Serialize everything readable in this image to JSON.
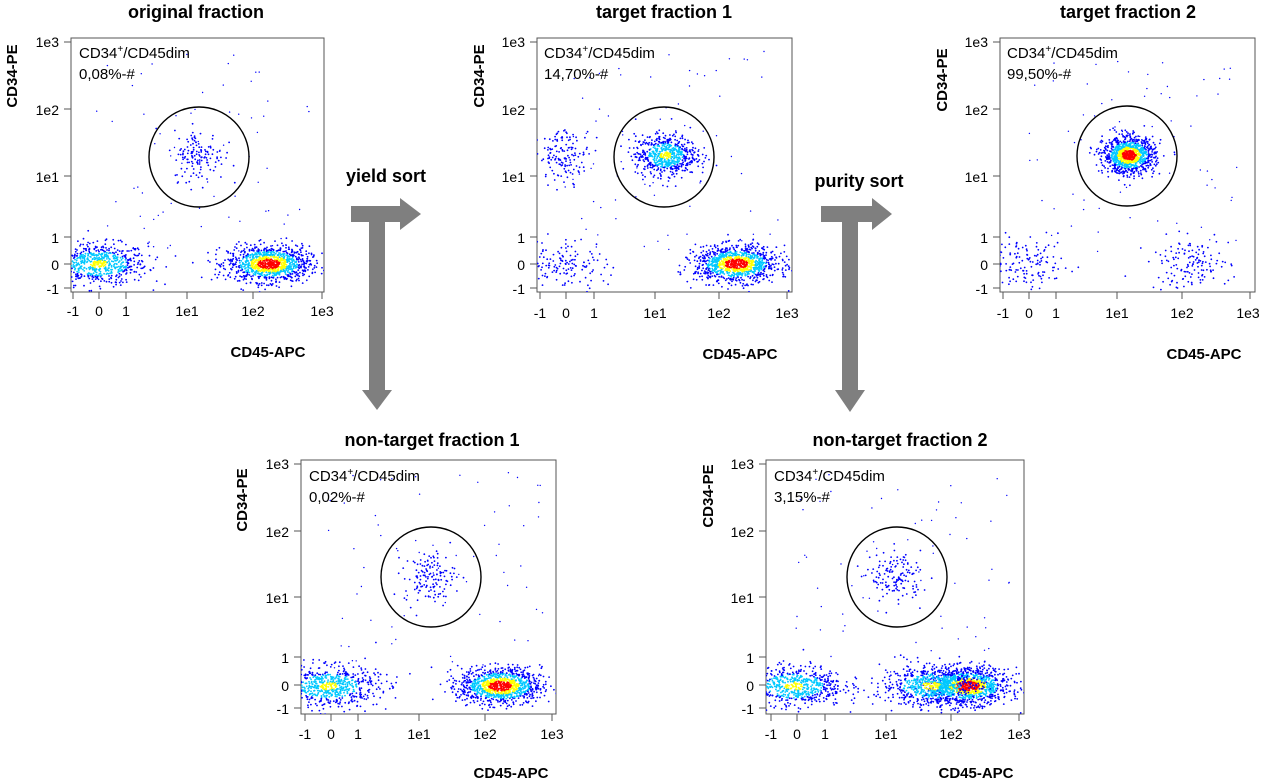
{
  "colors": {
    "arrow": "#7f7f7f",
    "density_low": "#0000ff",
    "density_mid": "#00c8ff",
    "density_high": "#ffff00",
    "density_peak": "#ff0000"
  },
  "sort_labels": {
    "yield": "yield sort",
    "purity": "purity sort"
  },
  "chart_data": [
    {
      "type": "scatter",
      "title": "original fraction",
      "xlabel": "CD45-APC",
      "ylabel": "CD34-PE",
      "xticks": [
        "-1",
        "0",
        "1",
        "1e1",
        "1e2",
        "1e3"
      ],
      "yticks": [
        "1e3",
        "1e2",
        "1e1",
        "1",
        "0",
        "-1"
      ],
      "x_scale": "biexponential",
      "y_scale": "biexponential",
      "gate": {
        "name_main": "CD34",
        "name_sup": "+",
        "name_rest": "/CD45dim",
        "stat": "0,08%-#",
        "center": [
          15,
          20
        ]
      },
      "populations": [
        {
          "x": 0,
          "y": 0,
          "density": "medium"
        },
        {
          "x": 170,
          "y": 0,
          "density": "high"
        },
        {
          "x": 15,
          "y": 20,
          "density": "low"
        }
      ]
    },
    {
      "type": "scatter",
      "title": "target fraction 1",
      "xlabel": "CD45-APC",
      "ylabel": "CD34-PE",
      "xticks": [
        "-1",
        "0",
        "1",
        "1e1",
        "1e2",
        "1e3"
      ],
      "yticks": [
        "1e3",
        "1e2",
        "1e1",
        "1",
        "0",
        "-1"
      ],
      "x_scale": "biexponential",
      "y_scale": "biexponential",
      "gate": {
        "name_main": "CD34",
        "name_sup": "+",
        "name_rest": "/CD45dim",
        "stat": "14,70%-#",
        "center": [
          15,
          20
        ]
      },
      "populations": [
        {
          "x": 15,
          "y": 20,
          "density": "medium"
        },
        {
          "x": 170,
          "y": 0,
          "density": "high"
        },
        {
          "x": 0,
          "y": 20,
          "density": "low"
        },
        {
          "x": 0,
          "y": 0,
          "density": "low"
        }
      ]
    },
    {
      "type": "scatter",
      "title": "target fraction 2",
      "xlabel": "CD45-APC",
      "ylabel": "CD34-PE",
      "xticks": [
        "-1",
        "0",
        "1",
        "1e1",
        "1e2",
        "1e3"
      ],
      "yticks": [
        "1e3",
        "1e2",
        "1e1",
        "1",
        "0",
        "-1"
      ],
      "x_scale": "biexponential",
      "y_scale": "biexponential",
      "gate": {
        "name_main": "CD34",
        "name_sup": "+",
        "name_rest": "/CD45dim",
        "stat": "99,50%-#",
        "center": [
          15,
          20
        ]
      },
      "populations": [
        {
          "x": 15,
          "y": 20,
          "density": "high"
        },
        {
          "x": 0,
          "y": 0,
          "density": "low"
        },
        {
          "x": 120,
          "y": 0,
          "density": "low"
        }
      ]
    },
    {
      "type": "scatter",
      "title": "non-target fraction 1",
      "xlabel": "CD45-APC",
      "ylabel": "CD34-PE",
      "xticks": [
        "-1",
        "0",
        "1",
        "1e1",
        "1e2",
        "1e3"
      ],
      "yticks": [
        "1e3",
        "1e2",
        "1e1",
        "1",
        "0",
        "-1"
      ],
      "x_scale": "biexponential",
      "y_scale": "biexponential",
      "gate": {
        "name_main": "CD34",
        "name_sup": "+",
        "name_rest": "/CD45dim",
        "stat": "0,02%-#",
        "center": [
          15,
          20
        ]
      },
      "populations": [
        {
          "x": 0,
          "y": 0,
          "density": "medium"
        },
        {
          "x": 170,
          "y": 0,
          "density": "high"
        },
        {
          "x": 15,
          "y": 20,
          "density": "low"
        }
      ]
    },
    {
      "type": "scatter",
      "title": "non-target fraction 2",
      "xlabel": "CD45-APC",
      "ylabel": "CD34-PE",
      "xticks": [
        "-1",
        "0",
        "1",
        "1e1",
        "1e2",
        "1e3"
      ],
      "yticks": [
        "1e3",
        "1e2",
        "1e1",
        "1",
        "0",
        "-1"
      ],
      "x_scale": "biexponential",
      "y_scale": "biexponential",
      "gate": {
        "name_main": "CD34",
        "name_sup": "+",
        "name_rest": "/CD45dim",
        "stat": "3,15%-#",
        "center": [
          15,
          20
        ]
      },
      "populations": [
        {
          "x": 0,
          "y": 0,
          "density": "medium"
        },
        {
          "x": 170,
          "y": 0,
          "density": "high"
        },
        {
          "x": 50,
          "y": 0,
          "density": "medium"
        },
        {
          "x": 15,
          "y": 20,
          "density": "low"
        }
      ]
    }
  ]
}
